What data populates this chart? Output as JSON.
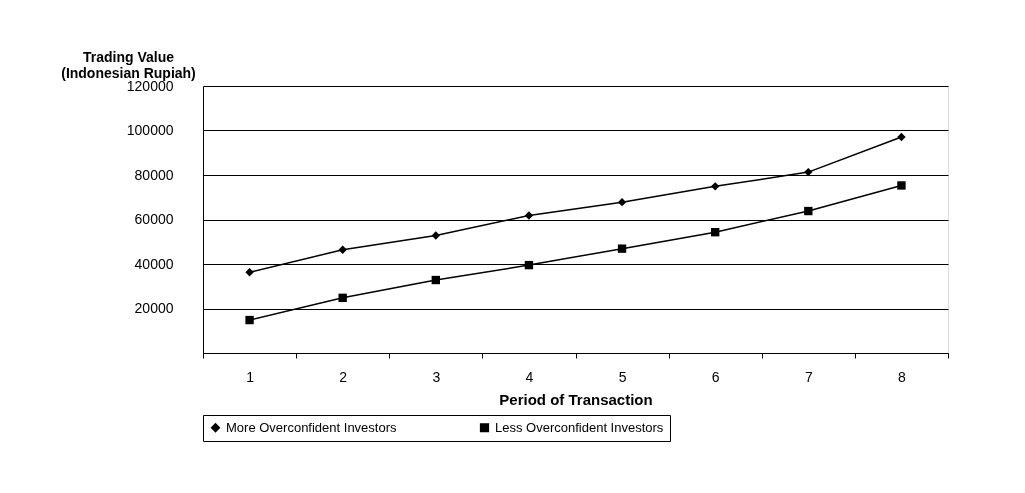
{
  "chart_data": {
    "type": "line",
    "xlabel": "Period of Transaction",
    "ylabel": "Trading Value\n(Indonesian Rupiah)",
    "categories": [
      "1",
      "2",
      "3",
      "4",
      "5",
      "6",
      "7",
      "8"
    ],
    "series": [
      {
        "name": "More Overconfident Investors",
        "color": "#000000",
        "marker": "diamond",
        "values": [
          36300,
          46400,
          52800,
          61800,
          67800,
          74900,
          81300,
          97100
        ]
      },
      {
        "name": "Less Overconfident Investors",
        "color": "#000000",
        "marker": "square",
        "values": [
          14800,
          24800,
          32800,
          39500,
          46900,
          54300,
          63800,
          75300
        ]
      }
    ],
    "ylim": [
      0,
      120000
    ],
    "yticks": [
      {
        "value": 0,
        "label": null
      },
      20000,
      40000,
      60000,
      80000,
      100000,
      120000
    ],
    "grid": "y",
    "legend": "bottom",
    "line_style": "solid"
  }
}
